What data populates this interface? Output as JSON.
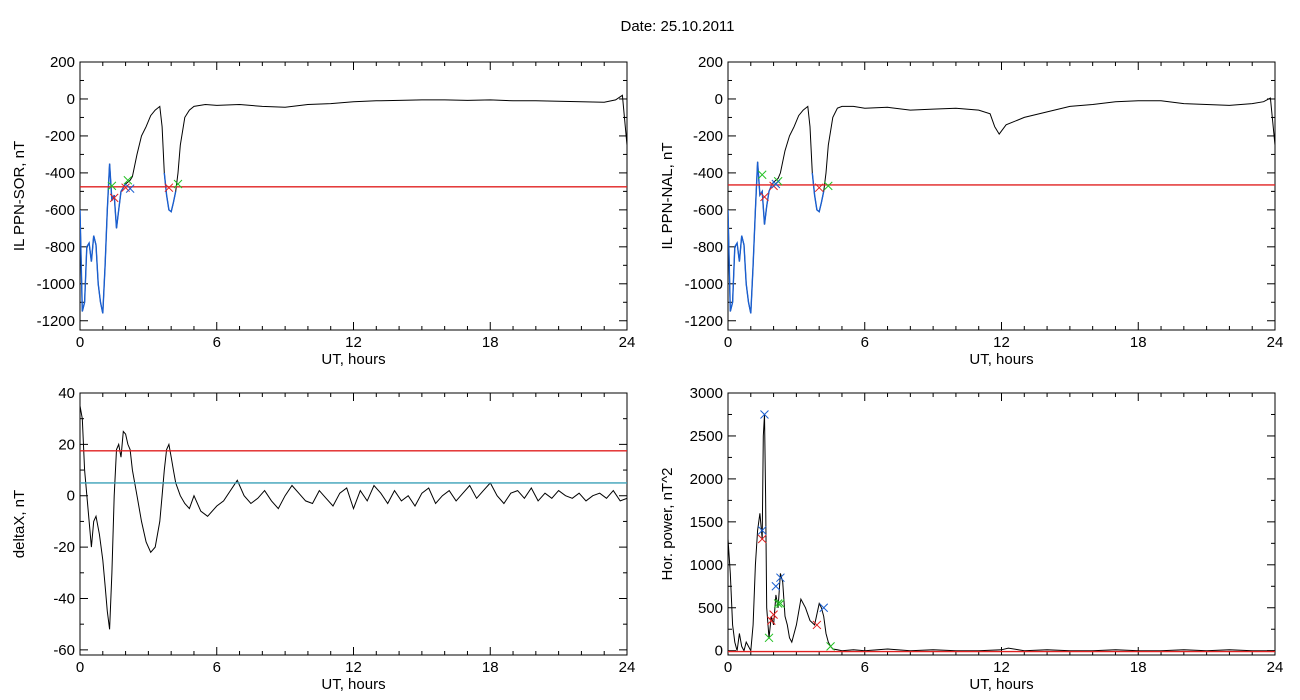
{
  "page_title": "Date:  25.10.2011",
  "colors": {
    "curve": "#000000",
    "blue": "#1a5fd0",
    "red": "#e02020",
    "green": "#22c022",
    "cyan": "#3aa0b8"
  },
  "chart_data": [
    {
      "type": "line",
      "ylabel": "IL PPN-SOR, nT",
      "xlabel": "UT, hours",
      "xlim": [
        0,
        24
      ],
      "ylim": [
        -1250,
        200
      ],
      "xticks": [
        "0",
        "6",
        "12",
        "18",
        "24"
      ],
      "xtick_values": [
        0,
        6,
        12,
        18,
        24
      ],
      "yticks": [
        "200",
        "0",
        "-200",
        "-400",
        "-600",
        "-800",
        "-1000",
        "-1200"
      ],
      "ytick_values": [
        200,
        0,
        -200,
        -400,
        -600,
        -800,
        -1000,
        -1200
      ],
      "series": [
        {
          "color": "#000000",
          "x": [
            0,
            0.1,
            0.2,
            0.3,
            0.4,
            0.5,
            0.6,
            0.7,
            0.8,
            0.9,
            1.0,
            1.1,
            1.2,
            1.3,
            1.4,
            1.5,
            1.6,
            1.7,
            1.8,
            1.9,
            2.0,
            2.1,
            2.2,
            2.3,
            2.5,
            2.7,
            2.9,
            3.1,
            3.3,
            3.5,
            3.6,
            3.7,
            3.8,
            3.9,
            4.0,
            4.1,
            4.2,
            4.3,
            4.4,
            4.6,
            4.8,
            5.0,
            5.5,
            6,
            7,
            8,
            9,
            10,
            11,
            12,
            13,
            14,
            15,
            16,
            17,
            18,
            19,
            20,
            21,
            22,
            23,
            23.5,
            23.8,
            24
          ],
          "y": [
            -600,
            -1150,
            -1100,
            -800,
            -780,
            -880,
            -740,
            -790,
            -1000,
            -1100,
            -1160,
            -900,
            -600,
            -350,
            -550,
            -520,
            -700,
            -600,
            -500,
            -480,
            -460,
            -450,
            -440,
            -420,
            -300,
            -200,
            -150,
            -90,
            -60,
            -40,
            -150,
            -400,
            -520,
            -600,
            -610,
            -560,
            -500,
            -400,
            -250,
            -100,
            -60,
            -40,
            -30,
            -35,
            -30,
            -40,
            -45,
            -30,
            -25,
            -15,
            -10,
            -8,
            -5,
            -5,
            -8,
            -5,
            -10,
            -10,
            -12,
            -15,
            -18,
            -5,
            20,
            -250
          ]
        },
        {
          "color": "#1a5fd0",
          "x": [
            0,
            0.1,
            0.2,
            0.3,
            0.4,
            0.5,
            0.6,
            0.7,
            0.8,
            0.9,
            1.0,
            1.1,
            1.2,
            1.3,
            1.4,
            1.5,
            1.6,
            1.7,
            1.8,
            1.9,
            2.0
          ],
          "y": [
            -600,
            -1150,
            -1100,
            -800,
            -780,
            -880,
            -740,
            -790,
            -1000,
            -1100,
            -1160,
            -900,
            -600,
            -350,
            -550,
            -520,
            -700,
            -600,
            -500,
            -480,
            -460
          ]
        },
        {
          "color": "#1a5fd0",
          "x": [
            3.7,
            3.8,
            3.9,
            4.0,
            4.1,
            4.2
          ],
          "y": [
            -400,
            -520,
            -600,
            -610,
            -560,
            -500
          ]
        },
        {
          "color": "#e02020",
          "x": [
            0,
            24
          ],
          "y": [
            -475,
            -475
          ]
        }
      ],
      "markers": [
        {
          "color": "#e02020",
          "x": [
            1.5,
            2.0,
            3.9
          ],
          "y": [
            -535,
            -480,
            -480
          ]
        },
        {
          "color": "#22c022",
          "x": [
            1.4,
            2.1,
            4.3
          ],
          "y": [
            -470,
            -440,
            -460
          ]
        },
        {
          "color": "#1a5fd0",
          "x": [
            2.2
          ],
          "y": [
            -485
          ]
        }
      ]
    },
    {
      "type": "line",
      "ylabel": "IL PPN-NAL, nT",
      "xlabel": "UT, hours",
      "xlim": [
        0,
        24
      ],
      "ylim": [
        -1250,
        200
      ],
      "xticks": [
        "0",
        "6",
        "12",
        "18",
        "24"
      ],
      "xtick_values": [
        0,
        6,
        12,
        18,
        24
      ],
      "yticks": [
        "200",
        "0",
        "-200",
        "-400",
        "-600",
        "-800",
        "-1000",
        "-1200"
      ],
      "ytick_values": [
        200,
        0,
        -200,
        -400,
        -600,
        -800,
        -1000,
        -1200
      ],
      "series": [
        {
          "color": "#000000",
          "x": [
            0,
            0.1,
            0.2,
            0.3,
            0.4,
            0.5,
            0.6,
            0.7,
            0.8,
            0.9,
            1.0,
            1.1,
            1.2,
            1.3,
            1.4,
            1.5,
            1.6,
            1.7,
            1.8,
            1.9,
            2.0,
            2.1,
            2.2,
            2.3,
            2.5,
            2.7,
            2.9,
            3.1,
            3.3,
            3.5,
            3.6,
            3.7,
            3.8,
            3.9,
            4.0,
            4.1,
            4.2,
            4.3,
            4.4,
            4.6,
            4.8,
            5.0,
            5.5,
            6,
            7,
            8,
            9,
            10,
            11,
            11.5,
            11.7,
            11.9,
            12.2,
            13,
            14,
            15,
            16,
            17,
            18,
            19,
            20,
            21,
            22,
            23,
            23.5,
            23.8,
            24
          ],
          "y": [
            -600,
            -1150,
            -1100,
            -800,
            -780,
            -880,
            -740,
            -790,
            -1000,
            -1100,
            -1160,
            -900,
            -600,
            -340,
            -520,
            -500,
            -680,
            -580,
            -500,
            -470,
            -450,
            -440,
            -430,
            -400,
            -280,
            -200,
            -150,
            -90,
            -60,
            -40,
            -150,
            -400,
            -520,
            -600,
            -610,
            -560,
            -500,
            -400,
            -250,
            -100,
            -50,
            -40,
            -40,
            -50,
            -45,
            -60,
            -55,
            -50,
            -60,
            -80,
            -150,
            -190,
            -140,
            -100,
            -70,
            -40,
            -30,
            -15,
            -10,
            -10,
            -25,
            -30,
            -35,
            -25,
            -15,
            5,
            -250
          ]
        },
        {
          "color": "#1a5fd0",
          "x": [
            0,
            0.1,
            0.2,
            0.3,
            0.4,
            0.5,
            0.6,
            0.7,
            0.8,
            0.9,
            1.0,
            1.1,
            1.2,
            1.3,
            1.4,
            1.5,
            1.6,
            1.7,
            1.8,
            1.9,
            2.0
          ],
          "y": [
            -600,
            -1150,
            -1100,
            -800,
            -780,
            -880,
            -740,
            -790,
            -1000,
            -1100,
            -1160,
            -900,
            -600,
            -340,
            -520,
            -500,
            -680,
            -580,
            -500,
            -470,
            -450
          ]
        },
        {
          "color": "#1a5fd0",
          "x": [
            3.7,
            3.8,
            3.9,
            4.0,
            4.1,
            4.2
          ],
          "y": [
            -400,
            -520,
            -600,
            -610,
            -560,
            -500
          ]
        },
        {
          "color": "#e02020",
          "x": [
            0,
            24
          ],
          "y": [
            -465,
            -465
          ]
        }
      ],
      "markers": [
        {
          "color": "#e02020",
          "x": [
            1.6,
            2.0,
            4.0
          ],
          "y": [
            -530,
            -470,
            -480
          ]
        },
        {
          "color": "#22c022",
          "x": [
            1.5,
            2.2,
            4.4
          ],
          "y": [
            -410,
            -445,
            -470
          ]
        },
        {
          "color": "#1a5fd0",
          "x": [
            2.1
          ],
          "y": [
            -460
          ]
        }
      ]
    },
    {
      "type": "line",
      "ylabel": "deltaX, nT",
      "xlabel": "UT, hours",
      "xlim": [
        0,
        24
      ],
      "ylim": [
        -62,
        40
      ],
      "xticks": [
        "0",
        "6",
        "12",
        "18",
        "24"
      ],
      "xtick_values": [
        0,
        6,
        12,
        18,
        24
      ],
      "yticks": [
        "40",
        "20",
        "0",
        "-20",
        "-40",
        "-60"
      ],
      "ytick_values": [
        40,
        20,
        0,
        -20,
        -40,
        -60
      ],
      "series": [
        {
          "color": "#000000",
          "x": [
            0,
            0.1,
            0.2,
            0.35,
            0.5,
            0.6,
            0.7,
            0.85,
            1.0,
            1.1,
            1.2,
            1.3,
            1.4,
            1.5,
            1.6,
            1.7,
            1.8,
            1.9,
            2.0,
            2.1,
            2.2,
            2.3,
            2.5,
            2.7,
            2.9,
            3.1,
            3.3,
            3.5,
            3.6,
            3.7,
            3.8,
            3.9,
            4.0,
            4.1,
            4.2,
            4.4,
            4.6,
            4.8,
            5.0,
            5.3,
            5.6,
            6.0,
            6.3,
            6.6,
            6.9,
            7.2,
            7.5,
            7.8,
            8.1,
            8.4,
            8.7,
            9.0,
            9.3,
            9.6,
            9.9,
            10.2,
            10.5,
            10.8,
            11.1,
            11.4,
            11.7,
            12.0,
            12.3,
            12.6,
            12.9,
            13.2,
            13.5,
            13.8,
            14.1,
            14.4,
            14.7,
            15.0,
            15.3,
            15.6,
            15.9,
            16.2,
            16.5,
            16.8,
            17.1,
            17.4,
            17.7,
            18.0,
            18.3,
            18.6,
            18.9,
            19.2,
            19.5,
            19.8,
            20.1,
            20.4,
            20.7,
            21.0,
            21.3,
            21.6,
            21.9,
            22.2,
            22.5,
            22.8,
            23.1,
            23.4,
            23.7,
            24
          ],
          "y": [
            35,
            30,
            10,
            -5,
            -20,
            -10,
            -8,
            -15,
            -25,
            -35,
            -45,
            -52,
            -30,
            0,
            18,
            20,
            15,
            25,
            24,
            20,
            18,
            10,
            0,
            -10,
            -18,
            -22,
            -20,
            -10,
            0,
            10,
            18,
            20,
            15,
            10,
            5,
            0,
            -3,
            -5,
            0,
            -6,
            -8,
            -4,
            -2,
            2,
            6,
            0,
            -3,
            -1,
            2,
            -2,
            -5,
            0,
            4,
            1,
            -2,
            -3,
            2,
            -1,
            -4,
            1,
            3,
            -5,
            2,
            -2,
            4,
            1,
            -3,
            2,
            -2,
            0,
            -4,
            1,
            3,
            -3,
            0,
            2,
            -2,
            1,
            4,
            -1,
            2,
            5,
            0,
            -3,
            1,
            2,
            -1,
            3,
            -2,
            1,
            -1,
            2,
            0,
            -1,
            1,
            -2,
            0,
            1,
            -1,
            2,
            -2,
            -1
          ]
        },
        {
          "color": "#e02020",
          "x": [
            0,
            24
          ],
          "y": [
            17.5,
            17.5
          ]
        },
        {
          "color": "#3aa0b8",
          "x": [
            0,
            24
          ],
          "y": [
            5,
            5
          ]
        }
      ],
      "markers": []
    },
    {
      "type": "line",
      "ylabel": "Hor. power, nT^2",
      "xlabel": "UT, hours",
      "xlim": [
        0,
        24
      ],
      "ylim": [
        -50,
        3000
      ],
      "xticks": [
        "0",
        "6",
        "12",
        "18",
        "24"
      ],
      "xtick_values": [
        0,
        6,
        12,
        18,
        24
      ],
      "yticks": [
        "3000",
        "2500",
        "2000",
        "1500",
        "1000",
        "500",
        "0"
      ],
      "ytick_values": [
        3000,
        2500,
        2000,
        1500,
        1000,
        500,
        0
      ],
      "series": [
        {
          "color": "#000000",
          "x": [
            0,
            0.1,
            0.2,
            0.3,
            0.4,
            0.5,
            0.6,
            0.7,
            0.8,
            0.9,
            1.0,
            1.1,
            1.2,
            1.3,
            1.4,
            1.5,
            1.55,
            1.6,
            1.65,
            1.7,
            1.8,
            1.9,
            2.0,
            2.1,
            2.2,
            2.3,
            2.4,
            2.5,
            2.6,
            2.7,
            2.8,
            2.9,
            3.0,
            3.2,
            3.4,
            3.6,
            3.8,
            4.0,
            4.1,
            4.2,
            4.3,
            4.4,
            4.5,
            4.6,
            4.8,
            5.0,
            5.5,
            6,
            7,
            8,
            9,
            10,
            11,
            12,
            12.3,
            13,
            14,
            15,
            16,
            17,
            18,
            19,
            20,
            21,
            22,
            23,
            24
          ],
          "y": [
            1300,
            900,
            300,
            100,
            0,
            200,
            50,
            0,
            100,
            50,
            0,
            300,
            1000,
            1400,
            1600,
            1300,
            2500,
            2750,
            1800,
            500,
            150,
            400,
            300,
            650,
            500,
            900,
            800,
            400,
            300,
            150,
            100,
            200,
            300,
            600,
            500,
            350,
            300,
            550,
            500,
            400,
            200,
            100,
            50,
            20,
            10,
            0,
            10,
            0,
            20,
            0,
            10,
            0,
            0,
            10,
            30,
            0,
            10,
            0,
            0,
            10,
            0,
            0,
            10,
            0,
            10,
            0,
            0
          ]
        },
        {
          "color": "#e02020",
          "x": [
            0,
            24
          ],
          "y": [
            -10,
            -10
          ]
        }
      ],
      "markers": [
        {
          "color": "#1a5fd0",
          "x": [
            1.5,
            1.6,
            2.1,
            2.3,
            4.2
          ],
          "y": [
            1400,
            2750,
            750,
            850,
            500
          ]
        },
        {
          "color": "#e02020",
          "x": [
            1.5,
            1.9,
            2.0,
            3.9
          ],
          "y": [
            1300,
            350,
            420,
            300
          ]
        },
        {
          "color": "#22c022",
          "x": [
            1.8,
            2.2,
            2.3,
            4.5
          ],
          "y": [
            150,
            550,
            550,
            50
          ]
        }
      ]
    }
  ]
}
